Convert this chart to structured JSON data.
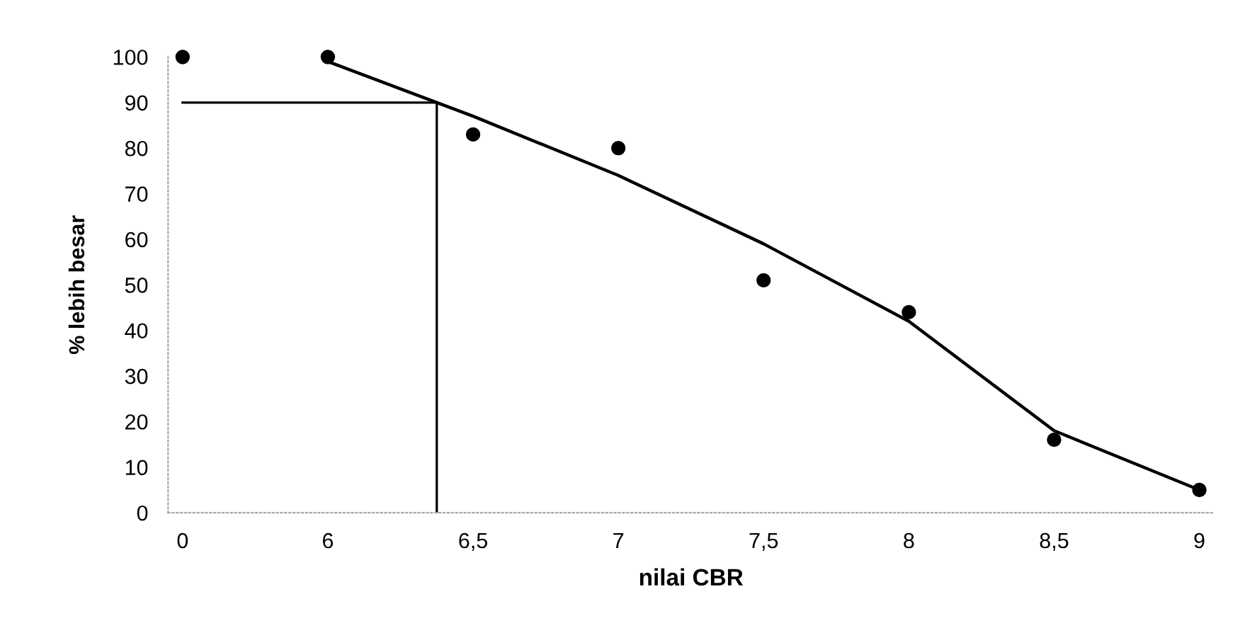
{
  "chart_data": {
    "type": "scatter",
    "xlabel": "nilai CBR",
    "ylabel": "% lebih besar",
    "categories": [
      "0",
      "6",
      "6,5",
      "7",
      "7,5",
      "8",
      "8,5",
      "9"
    ],
    "series": [
      {
        "color": "#000000",
        "marker": "circle",
        "values": [
          100,
          100,
          83,
          80,
          51,
          44,
          16,
          5
        ]
      },
      {
        "type": "line",
        "color": "#000000",
        "marker": "none",
        "line_style": "solid",
        "values": [
          null,
          99,
          87,
          74,
          59,
          42,
          18,
          5
        ]
      }
    ],
    "ref_lines": [
      {
        "axis": "y",
        "value": 90,
        "color": "#000000"
      }
    ],
    "ylim": [
      0,
      100
    ],
    "yticks": [
      0,
      10,
      20,
      30,
      40,
      50,
      60,
      70,
      80,
      90,
      100
    ],
    "grid": false,
    "legend": false
  }
}
